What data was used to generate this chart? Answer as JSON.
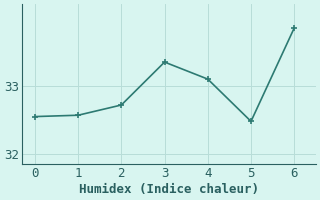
{
  "x": [
    0,
    1,
    2,
    3,
    4,
    5,
    6
  ],
  "y": [
    32.55,
    32.57,
    32.72,
    33.35,
    33.1,
    32.48,
    33.85
  ],
  "line_color": "#2d7a72",
  "marker": "+",
  "marker_size": 5,
  "marker_lw": 1.2,
  "background_color": "#d8f5f0",
  "grid_color": "#b8ddd8",
  "xlabel": "Humidex (Indice chaleur)",
  "xlim": [
    -0.3,
    6.5
  ],
  "ylim": [
    31.85,
    34.2
  ],
  "yticks": [
    32,
    33
  ],
  "xticks": [
    0,
    1,
    2,
    3,
    4,
    5,
    6
  ],
  "font_color": "#2a6060",
  "font_family": "monospace",
  "font_size": 9,
  "xlabel_font_size": 9,
  "line_width": 1.2
}
